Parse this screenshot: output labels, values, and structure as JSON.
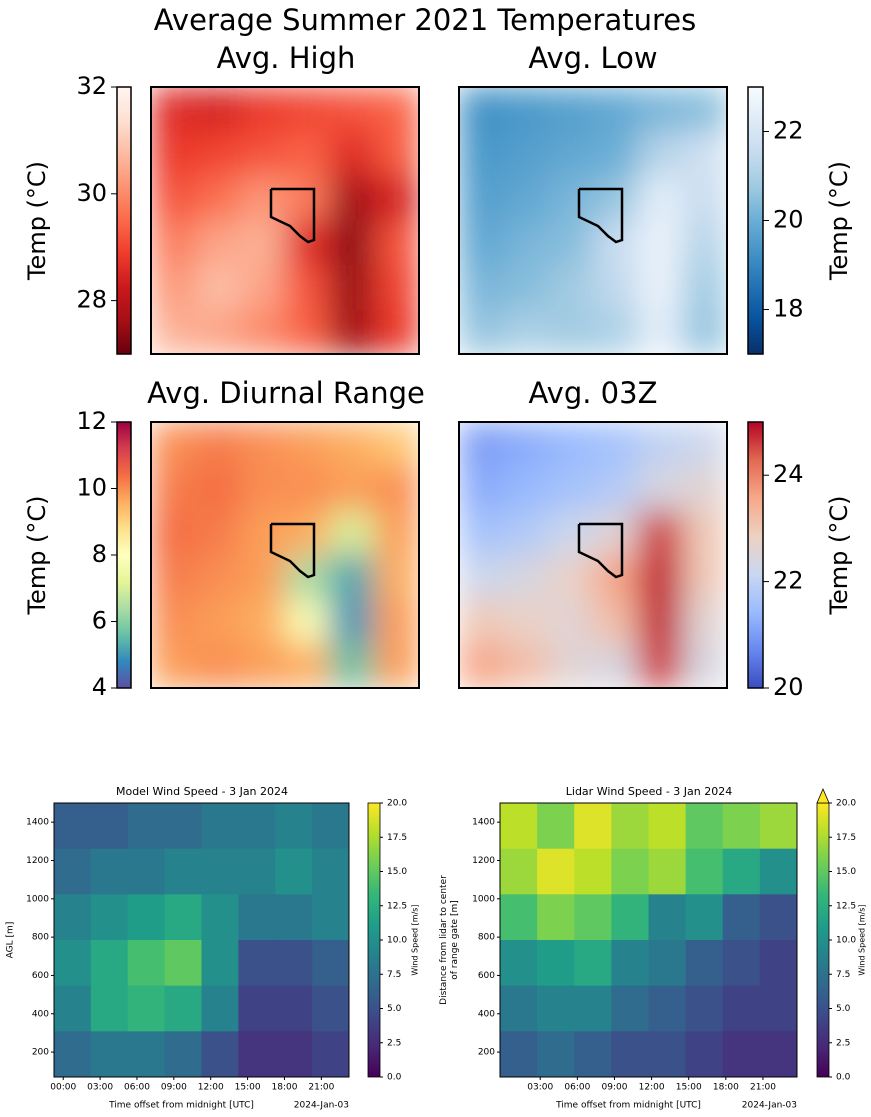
{
  "figure_title": "Average Summer 2021 Temperatures",
  "chart_data": [
    {
      "type": "heatmap",
      "title": "Avg. High",
      "colorbar_label": "Temp (°C)",
      "clim": [
        27,
        32
      ],
      "cticks": [
        32,
        30,
        28
      ],
      "colormap": [
        "#67000d",
        "#a50f15",
        "#cb181d",
        "#ef3b2c",
        "#fb6a4a",
        "#fc9272",
        "#fcbba1",
        "#fee0d2",
        "#fff5f0"
      ],
      "values": [
        [
          28.6,
          28.4,
          28.8,
          29.0,
          29.2,
          29.4
        ],
        [
          28.8,
          29.0,
          29.2,
          29.4,
          28.6,
          29.3
        ],
        [
          29.2,
          29.6,
          30.2,
          29.8,
          27.6,
          28.4
        ],
        [
          29.8,
          30.4,
          30.6,
          28.6,
          27.4,
          29.2
        ],
        [
          30.2,
          30.8,
          30.4,
          29.2,
          27.5,
          29.0
        ],
        [
          30.6,
          30.4,
          30.0,
          29.4,
          27.6,
          28.8
        ]
      ]
    },
    {
      "type": "heatmap",
      "title": "Avg. Low",
      "colorbar_label": "Temp (°C)",
      "clim": [
        17,
        23
      ],
      "cticks": [
        22,
        20,
        18
      ],
      "colormap": [
        "#08306b",
        "#08519c",
        "#2171b5",
        "#4292c6",
        "#6baed6",
        "#9ecae1",
        "#c6dbef",
        "#deebf7",
        "#f7fbff"
      ],
      "values": [
        [
          19.2,
          19.4,
          19.6,
          19.8,
          20.2,
          20.4
        ],
        [
          19.4,
          19.6,
          19.8,
          20.0,
          21.2,
          21.8
        ],
        [
          19.6,
          19.8,
          20.2,
          20.6,
          22.4,
          21.6
        ],
        [
          19.8,
          20.2,
          20.4,
          21.6,
          22.6,
          21.2
        ],
        [
          20.2,
          20.4,
          20.8,
          21.4,
          22.6,
          20.8
        ],
        [
          20.6,
          21.0,
          20.8,
          21.0,
          22.4,
          20.6
        ]
      ]
    },
    {
      "type": "heatmap",
      "title": "Avg. Diurnal Range",
      "colorbar_label": "Temp (°C)",
      "clim": [
        4,
        12
      ],
      "cticks": [
        12,
        10,
        8,
        6,
        4
      ],
      "colormap": [
        "#5e4fa2",
        "#3288bd",
        "#66c2a5",
        "#abdda4",
        "#e6f598",
        "#ffffbf",
        "#fee08b",
        "#fdae61",
        "#f46d43",
        "#d53e4f",
        "#9e0142"
      ],
      "values": [
        [
          10.0,
          10.2,
          10.0,
          9.8,
          9.6,
          9.2
        ],
        [
          10.2,
          10.4,
          10.0,
          10.0,
          9.8,
          10.0
        ],
        [
          10.4,
          10.2,
          9.8,
          9.6,
          7.0,
          9.8
        ],
        [
          10.2,
          10.0,
          9.8,
          6.4,
          5.2,
          9.6
        ],
        [
          10.0,
          9.8,
          9.6,
          7.8,
          5.0,
          9.8
        ],
        [
          9.8,
          10.0,
          9.8,
          9.6,
          5.6,
          9.8
        ]
      ]
    },
    {
      "type": "heatmap",
      "title": "Avg. 03Z",
      "colorbar_label": "Temp (°C)",
      "clim": [
        20,
        25
      ],
      "cticks": [
        24,
        22,
        20
      ],
      "colormap": [
        "#3b4cc0",
        "#6788ee",
        "#9abbff",
        "#c9d7f0",
        "#edd1c2",
        "#f7a889",
        "#e26952",
        "#b40426"
      ],
      "values": [
        [
          21.0,
          21.2,
          21.4,
          21.6,
          22.0,
          22.2
        ],
        [
          21.2,
          21.4,
          21.6,
          21.8,
          22.4,
          22.6
        ],
        [
          21.6,
          21.8,
          22.2,
          22.6,
          24.6,
          23.0
        ],
        [
          22.2,
          22.4,
          22.8,
          23.6,
          24.8,
          23.0
        ],
        [
          23.0,
          22.8,
          22.6,
          23.2,
          24.8,
          22.6
        ],
        [
          23.6,
          23.2,
          22.6,
          22.4,
          24.6,
          22.4
        ]
      ]
    },
    {
      "type": "heatmap",
      "title": "Model Wind Speed - 3 Jan 2024",
      "xlabel": "Time offset from midnight [UTC]",
      "ylabel": [
        "AGL [m]"
      ],
      "date_label": "2024-Jan-03",
      "colorbar_label": "Wind Speed [m/s]",
      "xlim": [
        -0.75,
        23.25
      ],
      "ylim": [
        70,
        1500
      ],
      "xticks": [
        {
          "value": 0,
          "label": "00:00"
        },
        {
          "value": 3,
          "label": "03:00"
        },
        {
          "value": 6,
          "label": "06:00"
        },
        {
          "value": 9,
          "label": "09:00"
        },
        {
          "value": 12,
          "label": "12:00"
        },
        {
          "value": 15,
          "label": "15:00"
        },
        {
          "value": 18,
          "label": "18:00"
        },
        {
          "value": 21,
          "label": "21:00"
        }
      ],
      "yticks": [
        200,
        400,
        600,
        800,
        1000,
        1200,
        1400
      ],
      "clim": [
        0,
        20
      ],
      "cticks": [
        {
          "value": 0,
          "label": "0.0"
        },
        2.5,
        {
          "value": 5,
          "label": "5.0"
        },
        7.5,
        {
          "value": 10,
          "label": "10.0"
        },
        12.5,
        {
          "value": 15,
          "label": "15.0"
        },
        17.5,
        {
          "value": 20,
          "label": "20.0"
        }
      ],
      "colormap": [
        "#440154",
        "#482878",
        "#3e4989",
        "#31688e",
        "#26828e",
        "#1f9e89",
        "#35b779",
        "#6ece58",
        "#b5de2b",
        "#fde725"
      ],
      "values": [
        [
          6,
          6,
          7,
          7,
          8,
          8,
          9,
          8
        ],
        [
          7,
          8,
          8,
          9,
          9,
          9,
          10,
          9
        ],
        [
          9,
          10,
          11,
          12,
          10,
          8,
          8,
          9
        ],
        [
          10,
          12,
          14,
          15,
          10,
          5,
          5,
          6
        ],
        [
          9,
          12,
          13,
          12,
          9,
          4,
          4,
          5
        ],
        [
          7,
          8,
          8,
          7,
          5,
          3,
          3,
          4
        ]
      ]
    },
    {
      "type": "heatmap",
      "title": "Lidar Wind Speed - 3 Jan 2024",
      "xlabel": "Time offset from midnight [UTC]",
      "ylabel": [
        "Distance from lidar to center",
        "of range gate [m]"
      ],
      "date_label": "2024-Jan-03",
      "colorbar_label": "Wind Speed [m/s]",
      "extend": "max",
      "xlim": [
        -0.25,
        23.75
      ],
      "ylim": [
        70,
        1500
      ],
      "xticks": [
        {
          "value": 3,
          "label": "03:00"
        },
        {
          "value": 6,
          "label": "06:00"
        },
        {
          "value": 9,
          "label": "09:00"
        },
        {
          "value": 12,
          "label": "12:00"
        },
        {
          "value": 15,
          "label": "15:00"
        },
        {
          "value": 18,
          "label": "18:00"
        },
        {
          "value": 21,
          "label": "21:00"
        }
      ],
      "yticks": [
        200,
        400,
        600,
        800,
        1000,
        1200,
        1400
      ],
      "clim": [
        0,
        20
      ],
      "cticks": [
        {
          "value": 0,
          "label": "0.0"
        },
        2.5,
        {
          "value": 5,
          "label": "5.0"
        },
        7.5,
        {
          "value": 10,
          "label": "10.0"
        },
        12.5,
        {
          "value": 15,
          "label": "15.0"
        },
        17.5,
        {
          "value": 20,
          "label": "20.0"
        }
      ],
      "colormap": [
        "#440154",
        "#482878",
        "#3e4989",
        "#31688e",
        "#26828e",
        "#1f9e89",
        "#35b779",
        "#6ece58",
        "#b5de2b",
        "#fde725"
      ],
      "values": [
        [
          18,
          16,
          19,
          17,
          18,
          15,
          16,
          17
        ],
        [
          17,
          19,
          18,
          16,
          17,
          14,
          12,
          10
        ],
        [
          14,
          16,
          15,
          13,
          9,
          10,
          6,
          5
        ],
        [
          10,
          11,
          12,
          9,
          8,
          6,
          5,
          4
        ],
        [
          8,
          9,
          9,
          7,
          6,
          5,
          4,
          4
        ],
        [
          6,
          7,
          6,
          5,
          5,
          4,
          3,
          3
        ]
      ]
    }
  ]
}
